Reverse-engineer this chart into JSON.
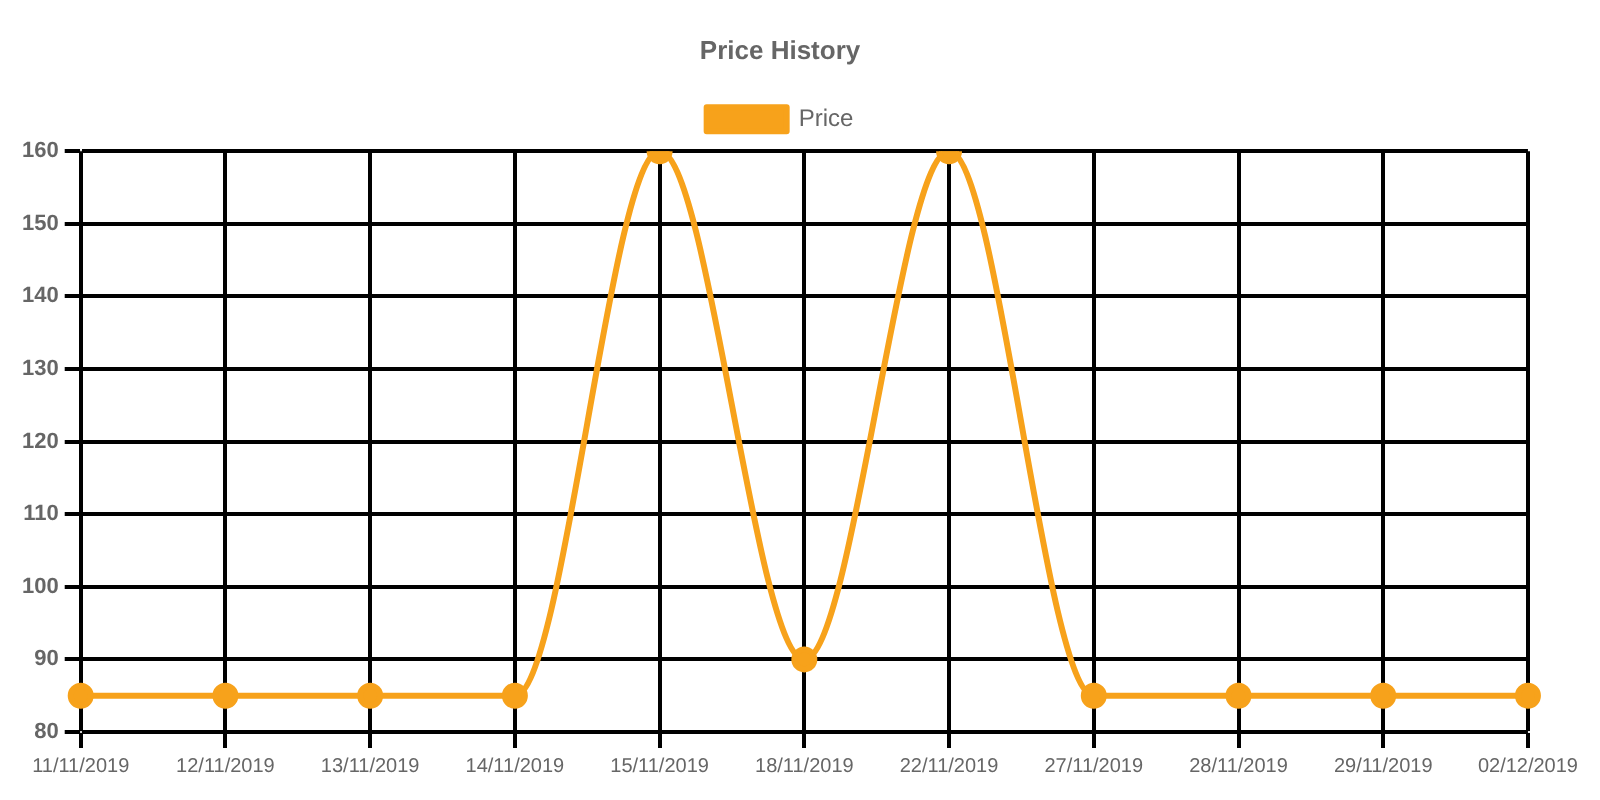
{
  "chart_data": {
    "type": "line",
    "title": "Price History",
    "categories": [
      "11/11/2019",
      "12/11/2019",
      "13/11/2019",
      "14/11/2019",
      "15/11/2019",
      "18/11/2019",
      "22/11/2019",
      "27/11/2019",
      "28/11/2019",
      "29/11/2019",
      "02/12/2019"
    ],
    "series": [
      {
        "name": "Price",
        "color": "#f7a21b",
        "values": [
          85,
          85,
          85,
          85,
          160,
          90,
          160,
          85,
          85,
          85,
          85
        ]
      }
    ],
    "ylim": [
      80,
      160
    ],
    "yticks": [
      80,
      90,
      100,
      110,
      120,
      130,
      140,
      150,
      160
    ],
    "grid": true,
    "legend": "top",
    "marker": "circle",
    "line_style": "solid"
  }
}
